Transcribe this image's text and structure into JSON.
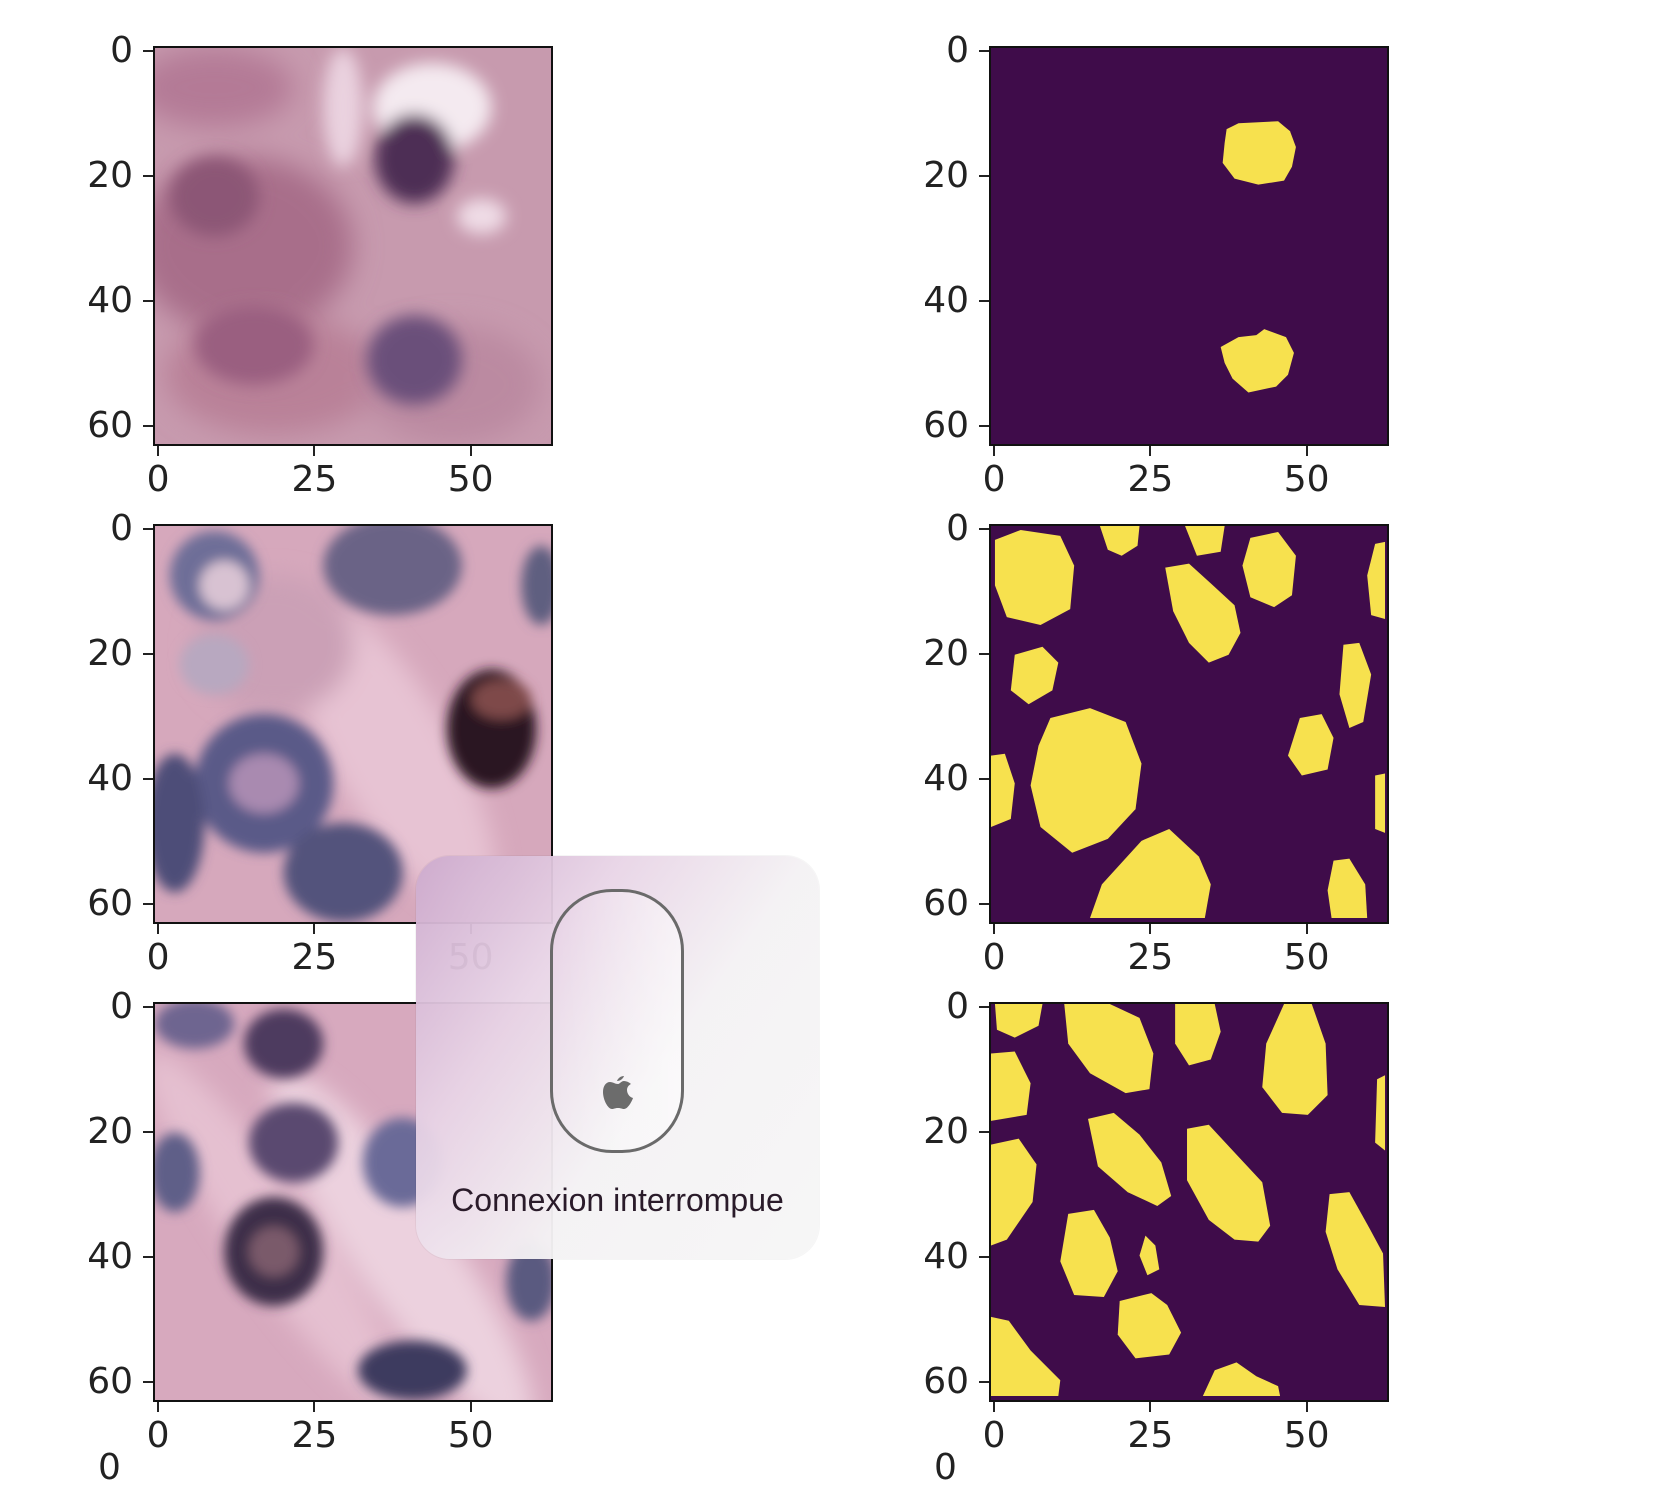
{
  "figure": {
    "y_tick_labels": [
      "0",
      "20",
      "40",
      "60"
    ],
    "x_tick_labels": [
      "0",
      "25",
      "50"
    ],
    "colormap": {
      "background": "#3f0c4a",
      "foreground": "#f7e14e"
    },
    "rows": [
      {
        "image_icon": "histology-image",
        "mask_icon": "segmentation-mask"
      },
      {
        "image_icon": "histology-image",
        "mask_icon": "segmentation-mask"
      },
      {
        "image_icon": "histology-image",
        "mask_icon": "segmentation-mask"
      }
    ],
    "partial_next_row_label": "0"
  },
  "notification": {
    "icon": "magic-mouse-icon",
    "text": "Connexion interrompue"
  }
}
